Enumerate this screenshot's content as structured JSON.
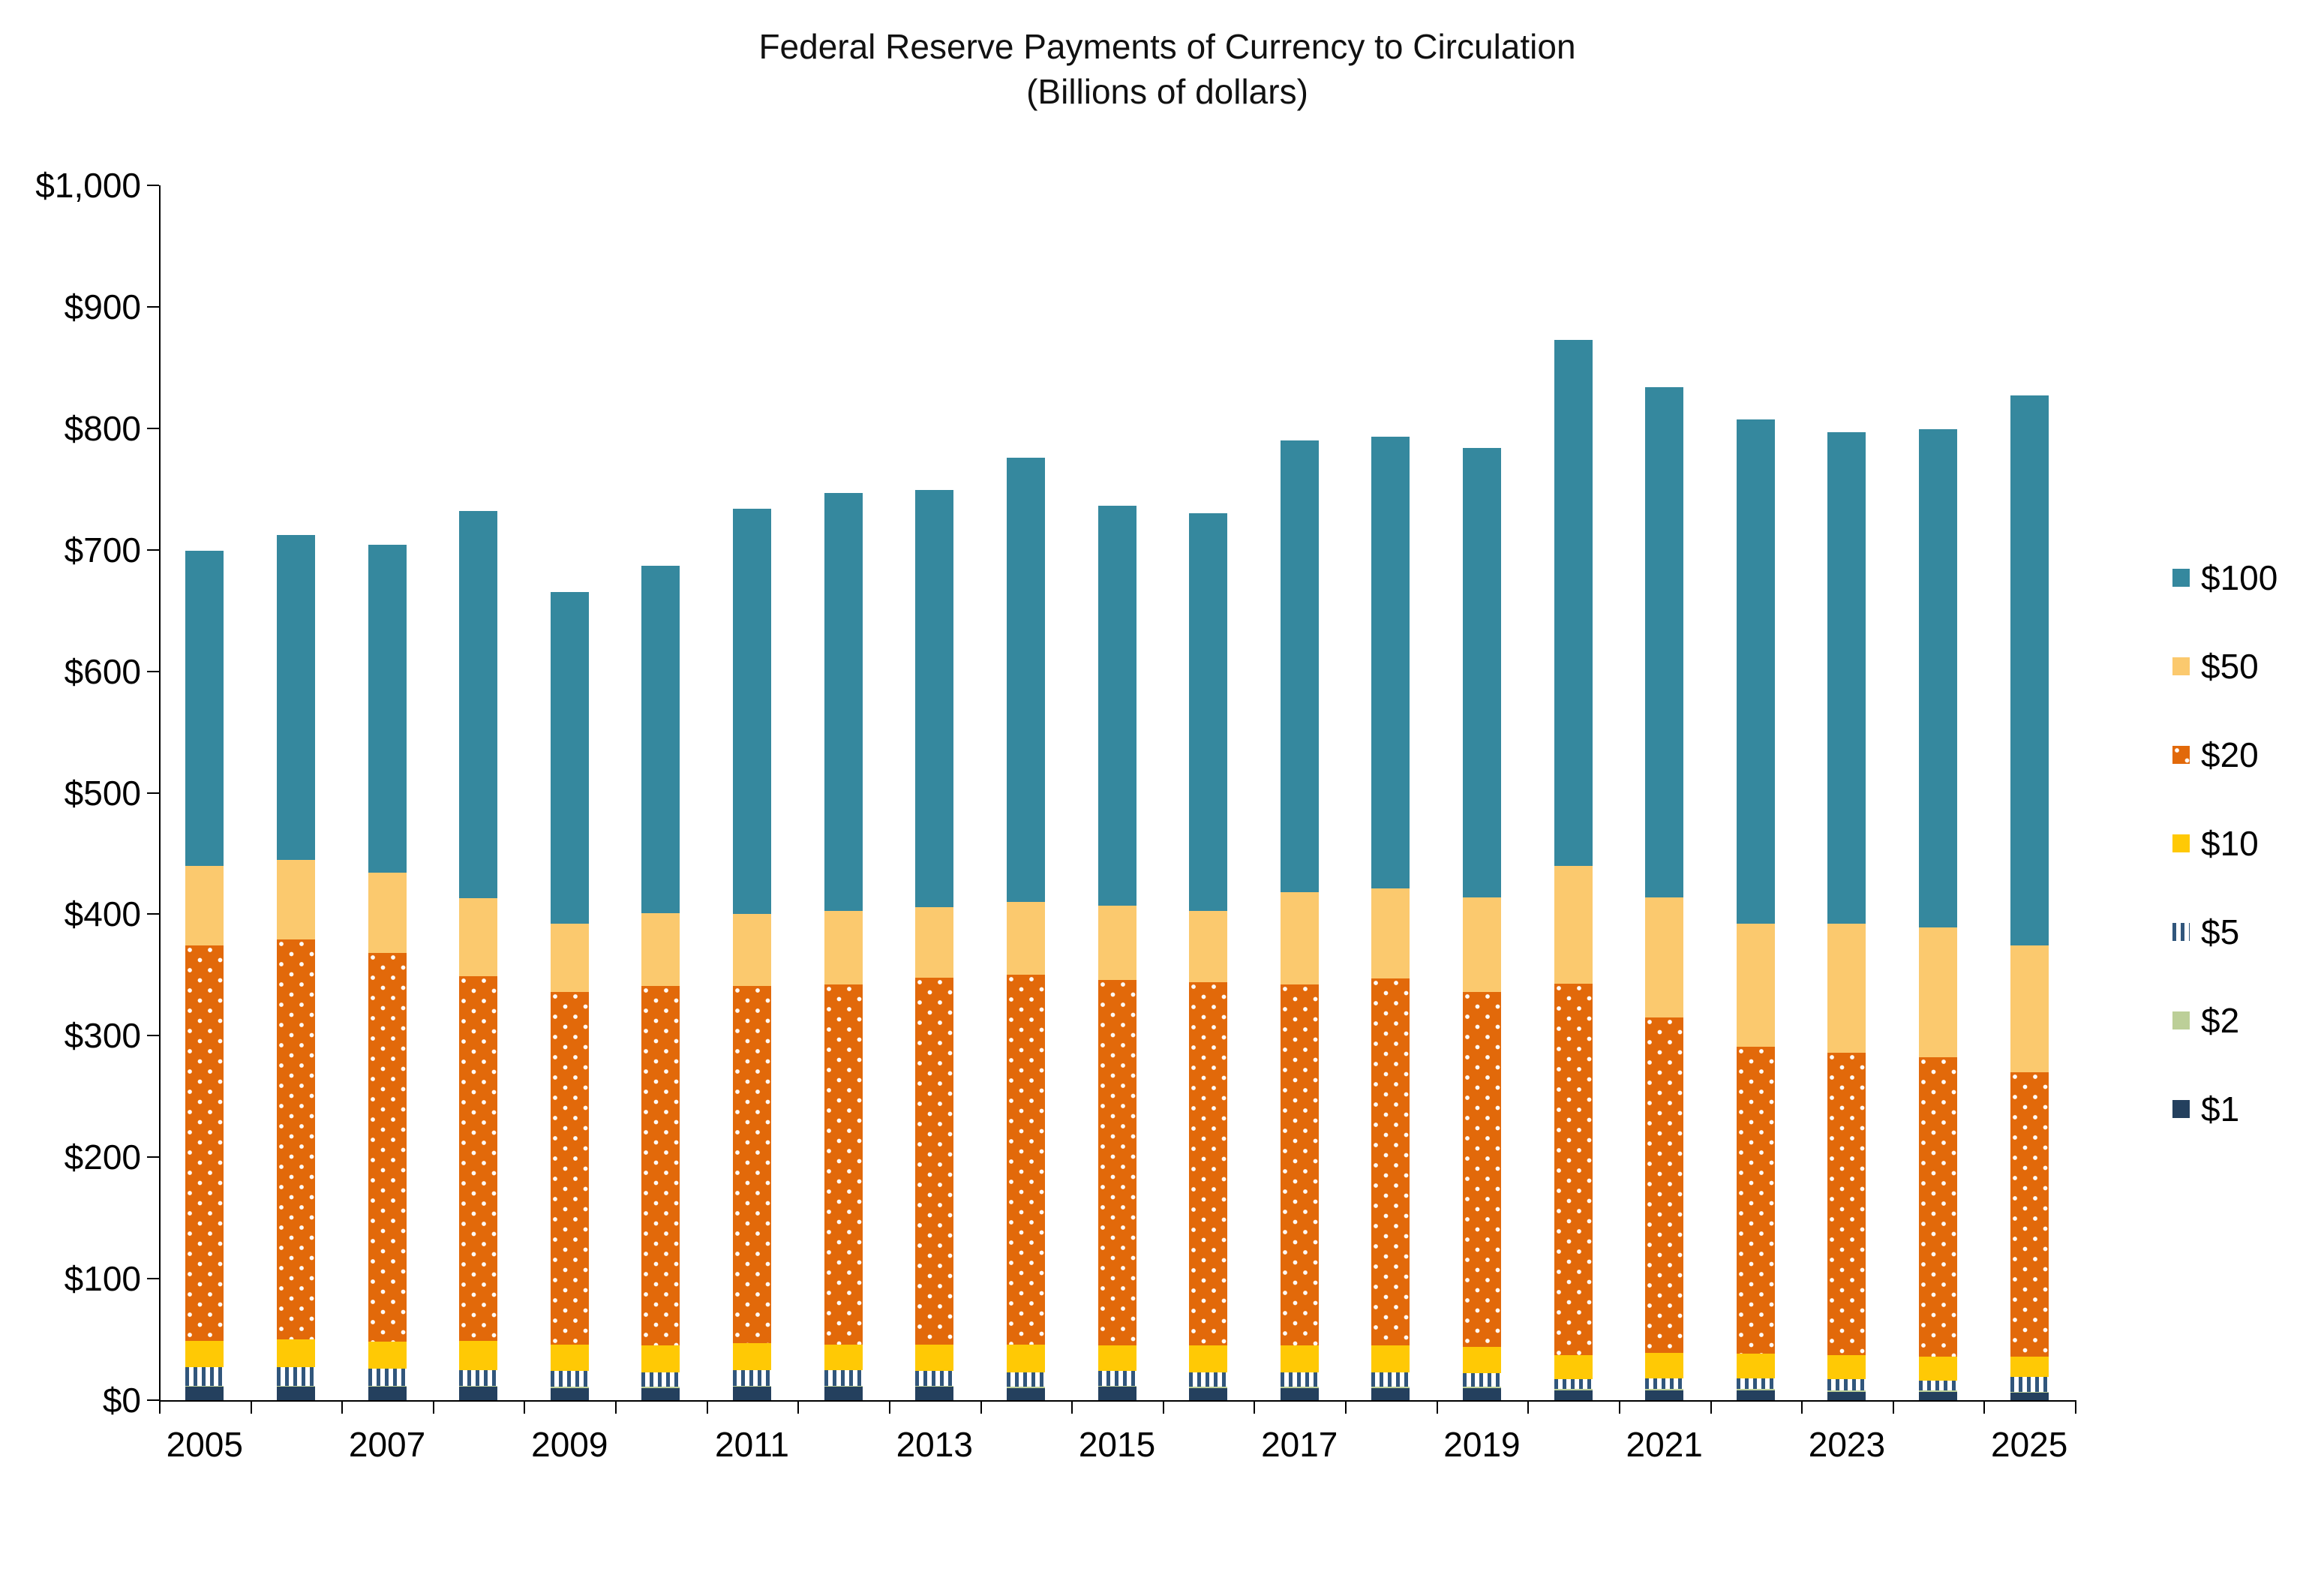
{
  "title": {
    "line1": "Federal Reserve Payments of Currency to Circulation",
    "line2": "(Billions of dollars)"
  },
  "chart_data": {
    "type": "bar",
    "stacked": true,
    "title": "Federal Reserve Payments of Currency to Circulation",
    "subtitle": "(Billions of dollars)",
    "grid": false,
    "legend_position": "right",
    "ylim": [
      0,
      1000
    ],
    "y_tick_step": 100,
    "y_tick_labels": [
      "$0",
      "$100",
      "$200",
      "$300",
      "$400",
      "$500",
      "$600",
      "$700",
      "$800",
      "$900",
      "$1,000"
    ],
    "categories": [
      2005,
      2006,
      2007,
      2008,
      2009,
      2010,
      2011,
      2012,
      2013,
      2014,
      2015,
      2016,
      2017,
      2018,
      2019,
      2020,
      2021,
      2022,
      2023,
      2024,
      2025
    ],
    "x_axis_labels_shown": [
      "2005",
      "2007",
      "2009",
      "2011",
      "2013",
      "2015",
      "2017",
      "2019",
      "2021",
      "2023",
      "2025"
    ],
    "series": [
      {
        "name": "$1",
        "key": "1",
        "color": "#24405E",
        "pattern": "solid",
        "values": [
          11,
          11,
          11,
          11,
          10,
          10,
          11,
          11,
          11,
          10,
          11,
          10,
          10,
          10,
          10,
          8,
          8,
          8,
          7,
          7,
          6
        ]
      },
      {
        "name": "$2",
        "key": "2",
        "color": "#BCCF98",
        "pattern": "solid",
        "values": [
          1,
          1,
          1,
          1,
          1,
          1,
          1,
          1,
          1,
          1,
          1,
          1,
          1,
          1,
          1,
          1,
          1,
          1,
          1,
          1,
          1
        ]
      },
      {
        "name": "$5",
        "key": "5",
        "color": "#31567C",
        "pattern": "vertical-stripes-on-white",
        "values": [
          15,
          15,
          14,
          13,
          13,
          12,
          13,
          13,
          12,
          12,
          12,
          12,
          12,
          12,
          11,
          8,
          9,
          9,
          9,
          8,
          12
        ]
      },
      {
        "name": "$10",
        "key": "10",
        "color": "#FFC905",
        "pattern": "solid",
        "values": [
          22,
          23,
          22,
          24,
          22,
          22,
          22,
          21,
          22,
          23,
          21,
          22,
          22,
          22,
          22,
          20,
          21,
          20,
          20,
          20,
          17
        ]
      },
      {
        "name": "$20",
        "key": "20",
        "color": "#E2690A",
        "pattern": "white-dots",
        "values": [
          325,
          329,
          320,
          300,
          290,
          296,
          294,
          296,
          302,
          304,
          301,
          299,
          297,
          302,
          292,
          306,
          276,
          253,
          249,
          246,
          234
        ]
      },
      {
        "name": "$50",
        "key": "50",
        "color": "#FBC96E",
        "pattern": "solid",
        "values": [
          66,
          66,
          66,
          64,
          56,
          60,
          59,
          61,
          58,
          60,
          61,
          59,
          76,
          74,
          78,
          97,
          99,
          101,
          106,
          107,
          104
        ]
      },
      {
        "name": "$100",
        "key": "100",
        "color": "#35889E",
        "pattern": "solid",
        "values": [
          259,
          267,
          270,
          319,
          273,
          286,
          334,
          344,
          343,
          366,
          329,
          327,
          372,
          372,
          370,
          433,
          420,
          415,
          405,
          410,
          453
        ]
      }
    ],
    "totals": [
      699,
      712,
      704,
      732,
      665,
      687,
      734,
      748,
      749,
      776,
      736,
      730,
      790,
      793,
      784,
      873,
      834,
      807,
      797,
      799,
      827
    ],
    "legend_items_top_to_bottom": [
      "$100",
      "$50",
      "$20",
      "$10",
      "$5",
      "$2",
      "$1"
    ]
  }
}
